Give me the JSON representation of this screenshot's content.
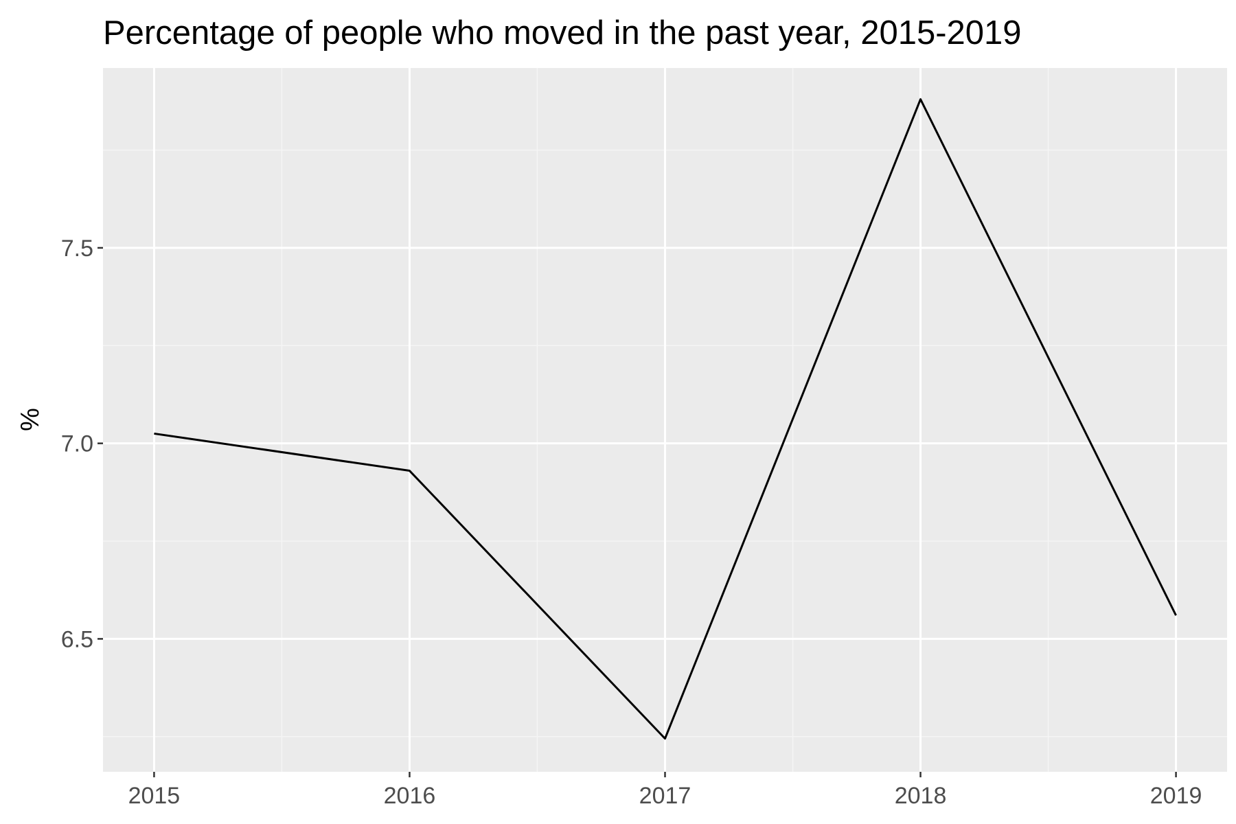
{
  "chart_data": {
    "type": "line",
    "title": "Percentage of people who moved in the past year, 2015-2019",
    "xlabel": "",
    "ylabel": "%",
    "x": [
      2015,
      2016,
      2017,
      2018,
      2019
    ],
    "x_tick_labels": [
      "2015",
      "2016",
      "2017",
      "2018",
      "2019"
    ],
    "y_ticks": [
      6.5,
      7.0,
      7.5
    ],
    "y_tick_labels": [
      "6.5",
      "7.0",
      "7.5"
    ],
    "series": [
      {
        "values": [
          7.025,
          6.93,
          6.245,
          7.88,
          6.56
        ]
      }
    ],
    "xlim": [
      2014.8,
      2019.2
    ],
    "ylim": [
      6.16,
      7.96
    ],
    "grid": true,
    "colors": {
      "panel_background": "#ebebeb",
      "grid_major": "#ffffff",
      "grid_minor": "#f5f5f5",
      "line": "#000000",
      "tick_label": "#4d4d4d",
      "axis_tick": "#333333"
    }
  }
}
